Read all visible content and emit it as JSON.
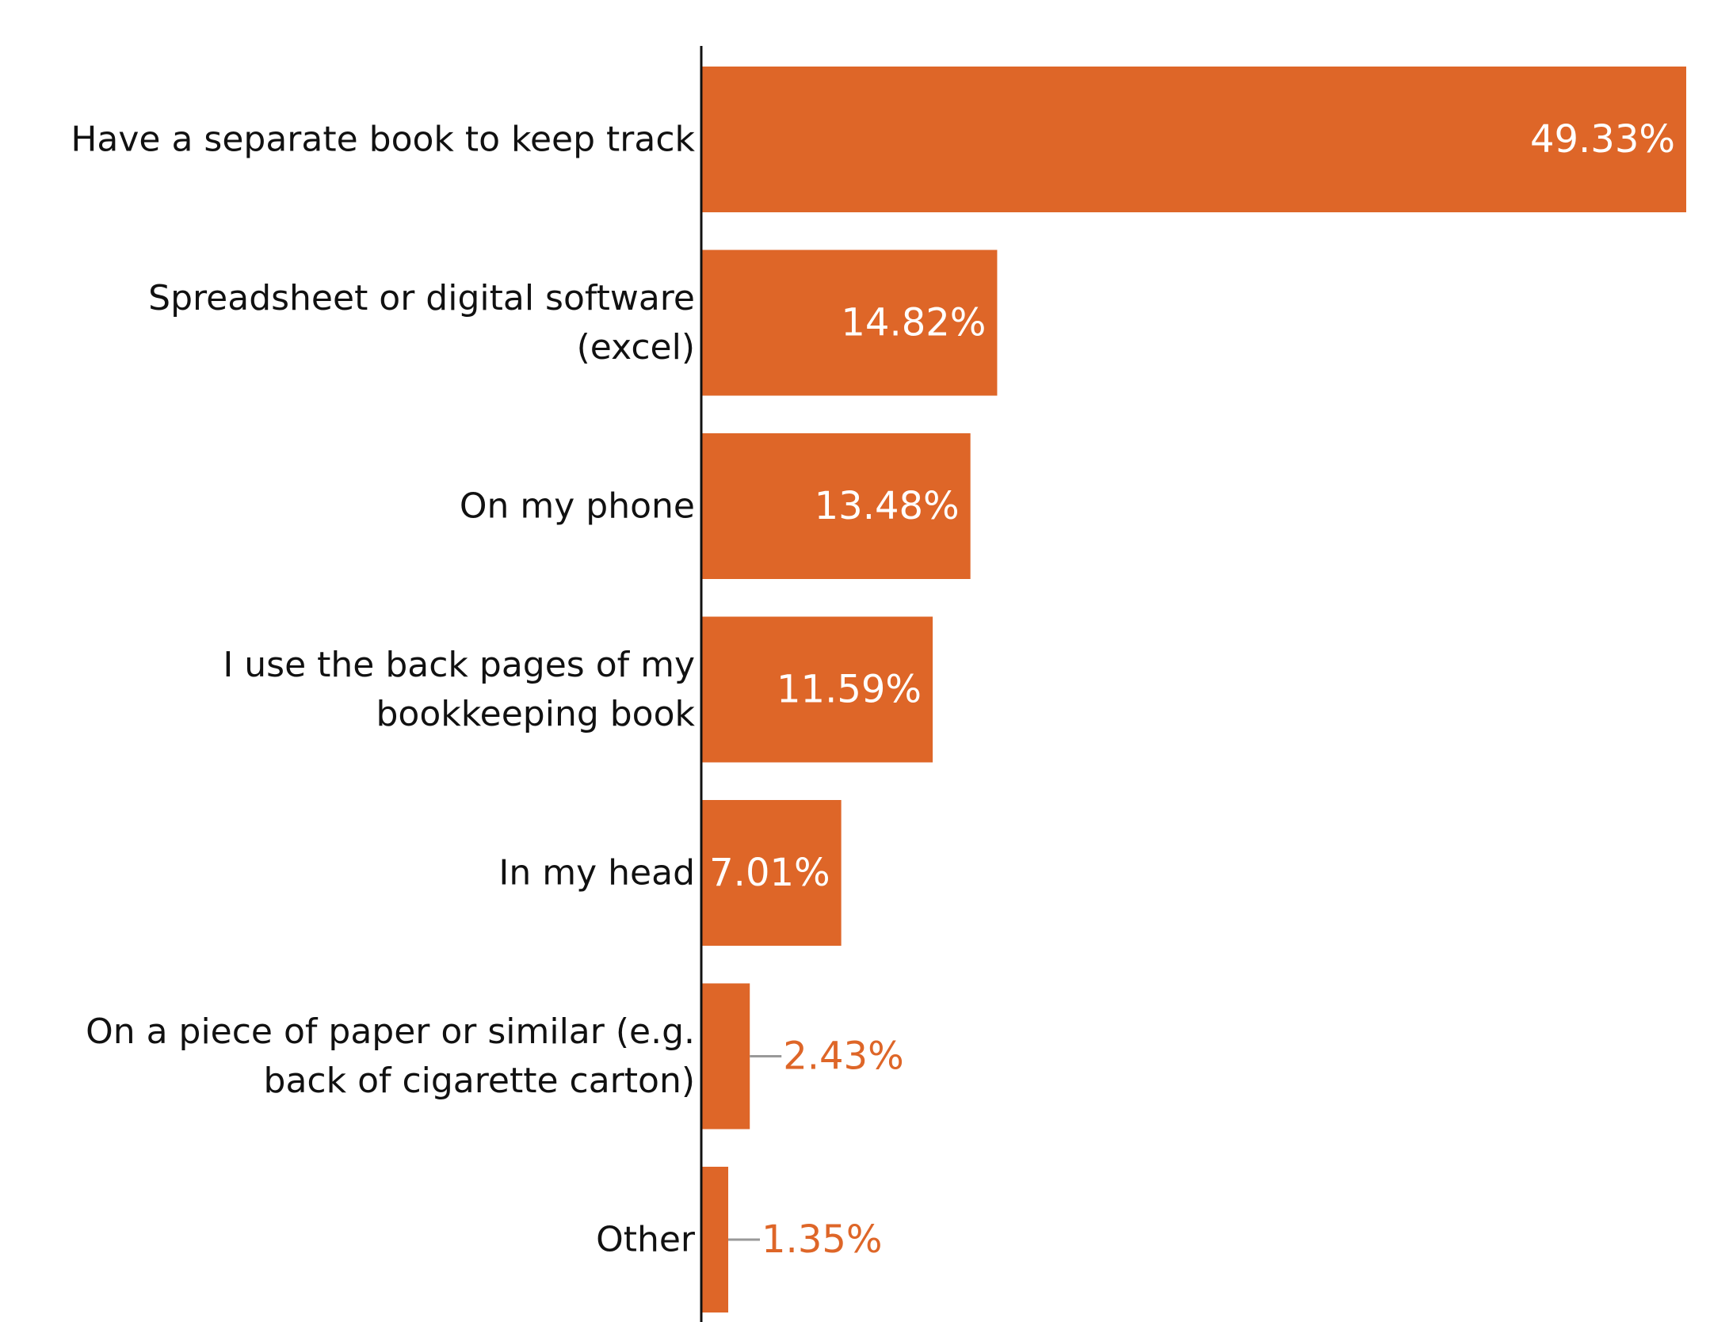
{
  "chart_data": {
    "type": "bar",
    "orientation": "horizontal",
    "categories": [
      [
        "Have a separate book to keep track"
      ],
      [
        "Spreadsheet or digital software",
        "(excel)"
      ],
      [
        "On my phone"
      ],
      [
        "I use the back pages of my",
        "bookkeeping book"
      ],
      [
        "In my head"
      ],
      [
        "On a piece of paper or similar (e.g.",
        "back of cigarette carton)"
      ],
      [
        "Other"
      ]
    ],
    "values": [
      49.33,
      14.82,
      13.48,
      11.59,
      7.01,
      2.43,
      1.35
    ],
    "value_labels": [
      "49.33%",
      "14.82%",
      "13.48%",
      "11.59%",
      "7.01%",
      "2.43%",
      "1.35%"
    ],
    "title": "",
    "xlabel": "",
    "ylabel": "",
    "xlim": [
      0,
      49.33
    ],
    "grid": false,
    "legend": "none",
    "colors": {
      "bar": "#DE6628",
      "axis": "#111111",
      "leader_line": "#999999",
      "outside_label": "#DE6628"
    }
  }
}
